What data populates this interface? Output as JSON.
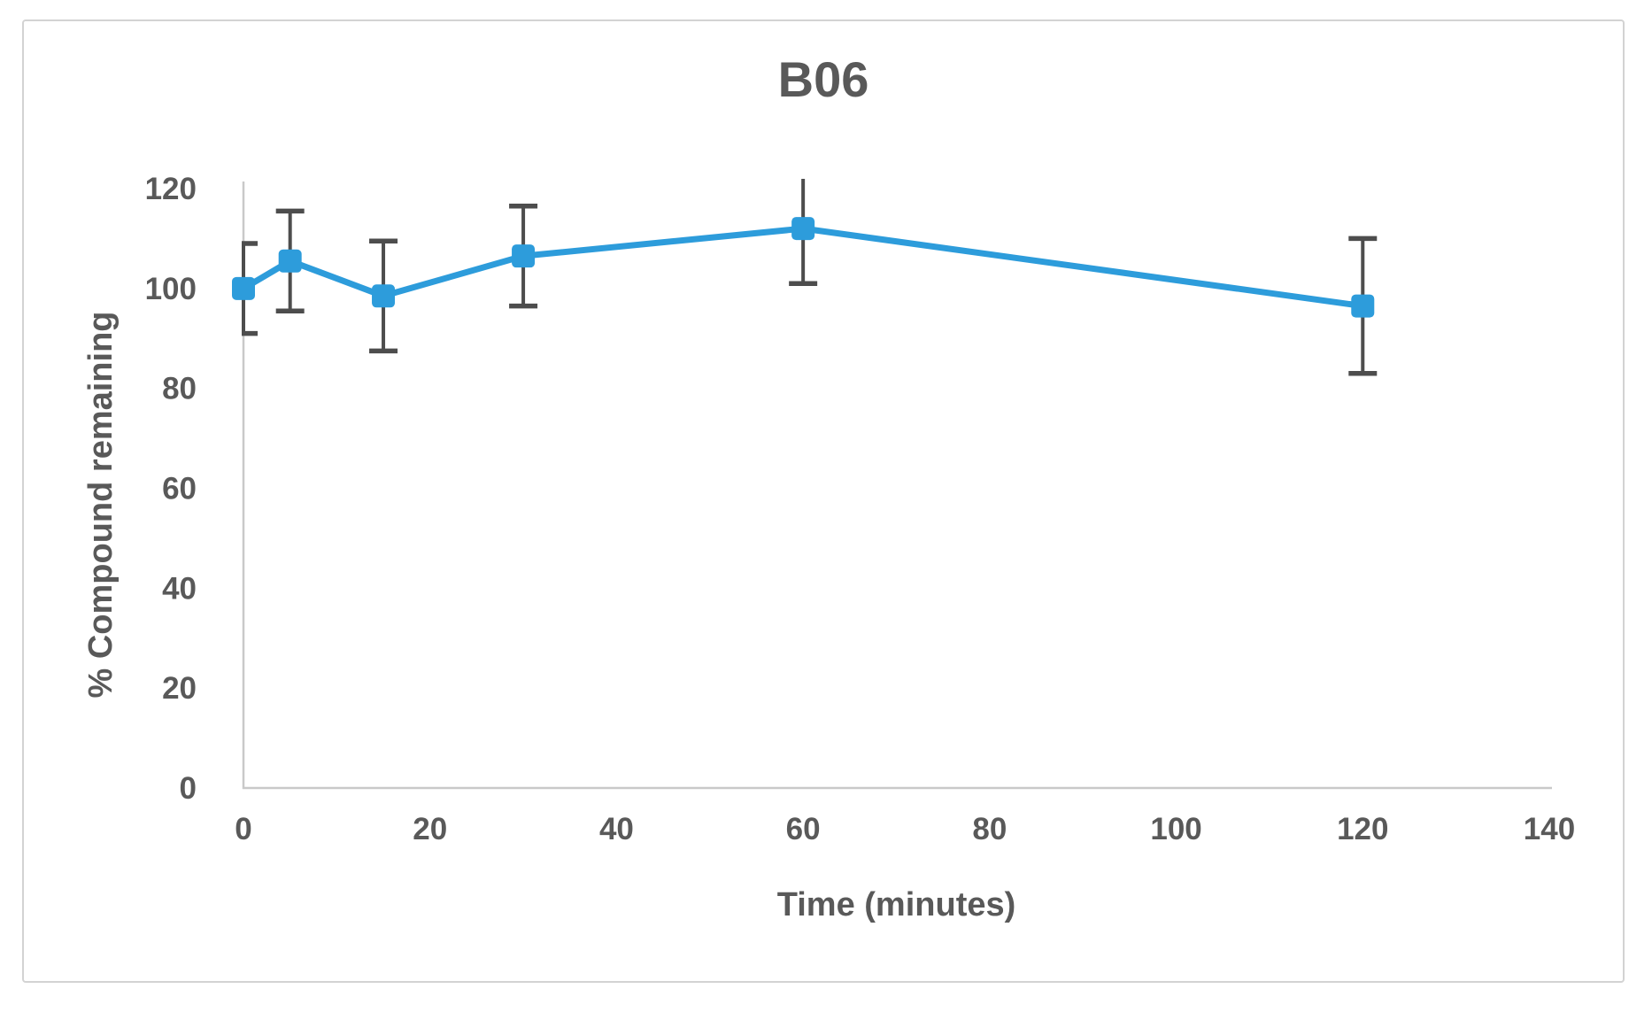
{
  "chart_data": {
    "type": "line",
    "title": "B06",
    "xlabel": "Time (minutes)",
    "ylabel": "% Compound remaining",
    "x": [
      0,
      5,
      15,
      30,
      60,
      120
    ],
    "series": [
      {
        "name": "B06",
        "values": [
          100,
          105.5,
          98.5,
          106.5,
          112,
          96.5
        ],
        "error_bars": [
          9,
          10,
          11,
          10,
          11,
          13.5
        ]
      }
    ],
    "xlim": [
      0,
      140
    ],
    "ylim": [
      0,
      120
    ],
    "x_ticks": [
      0,
      20,
      40,
      60,
      80,
      100,
      120,
      140
    ],
    "y_ticks": [
      0,
      20,
      40,
      60,
      80,
      100,
      120
    ],
    "grid": false,
    "legend": false,
    "marker": "square",
    "colors": {
      "series": "#2d9cdb",
      "error_bars": "#4d4d4d",
      "axis_line": "#c9c9c9",
      "text": "#595959",
      "frame_border": "#d3d3d3"
    }
  }
}
